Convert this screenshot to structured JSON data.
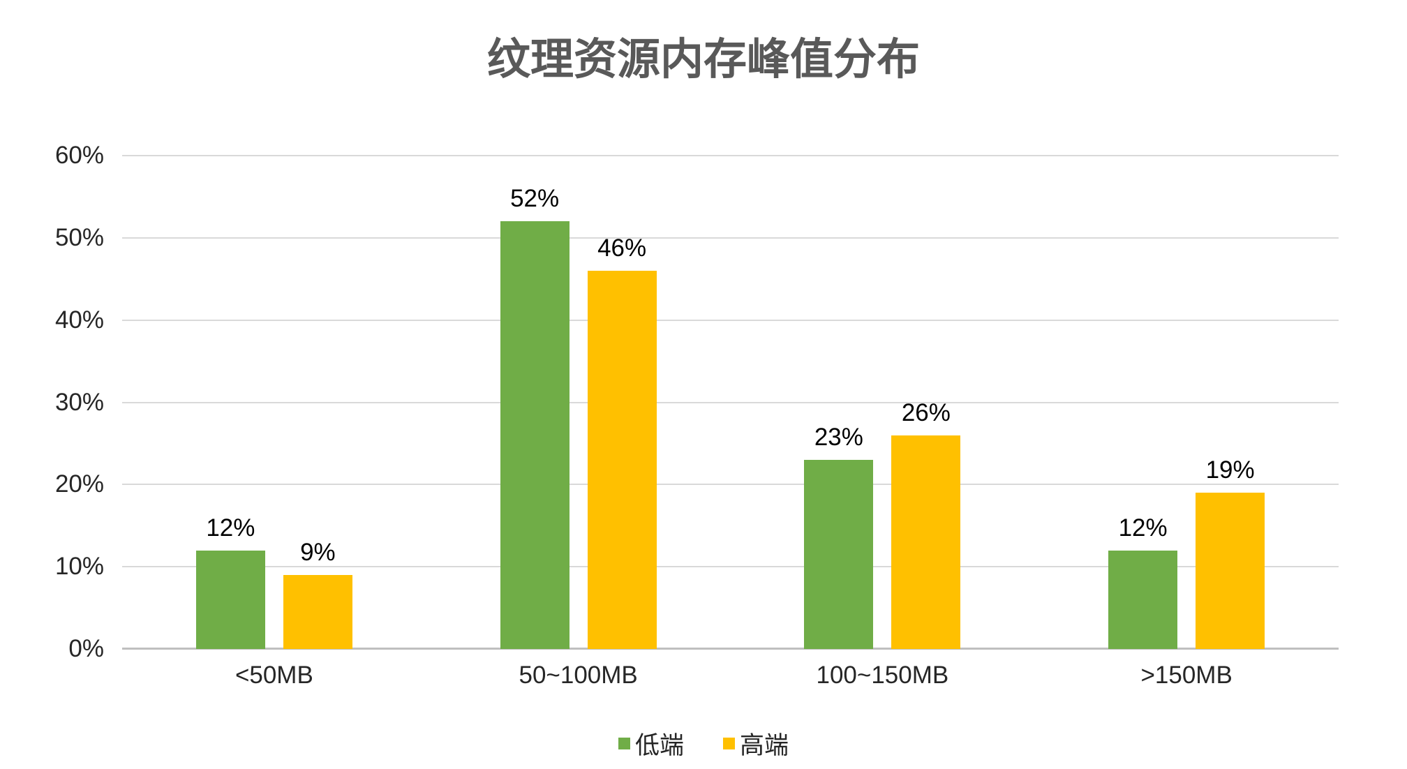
{
  "chart_data": {
    "type": "bar",
    "title": "纹理资源内存峰值分布",
    "categories": [
      "<50MB",
      "50~100MB",
      "100~150MB",
      ">150MB"
    ],
    "series": [
      {
        "name": "低端",
        "color": "#70AD47",
        "values": [
          12,
          52,
          23,
          12
        ],
        "labels": [
          "12%",
          "52%",
          "23%",
          "12%"
        ]
      },
      {
        "name": "高端",
        "color": "#FFC000",
        "values": [
          9,
          46,
          26,
          19
        ],
        "labels": [
          "9%",
          "46%",
          "26%",
          "19%"
        ]
      }
    ],
    "ylim": [
      0,
      60
    ],
    "y_tick_step": 10,
    "y_tick_labels": [
      "0%",
      "10%",
      "20%",
      "30%",
      "40%",
      "50%",
      "60%"
    ],
    "grid": true,
    "legend_position": "bottom",
    "colors": {
      "title_text": "#595959",
      "axis_text": "#262626",
      "data_label_text": "#000000",
      "gridline": "#D9D9D9",
      "baseline": "#BFBFBF",
      "background": "#FFFFFF"
    }
  }
}
